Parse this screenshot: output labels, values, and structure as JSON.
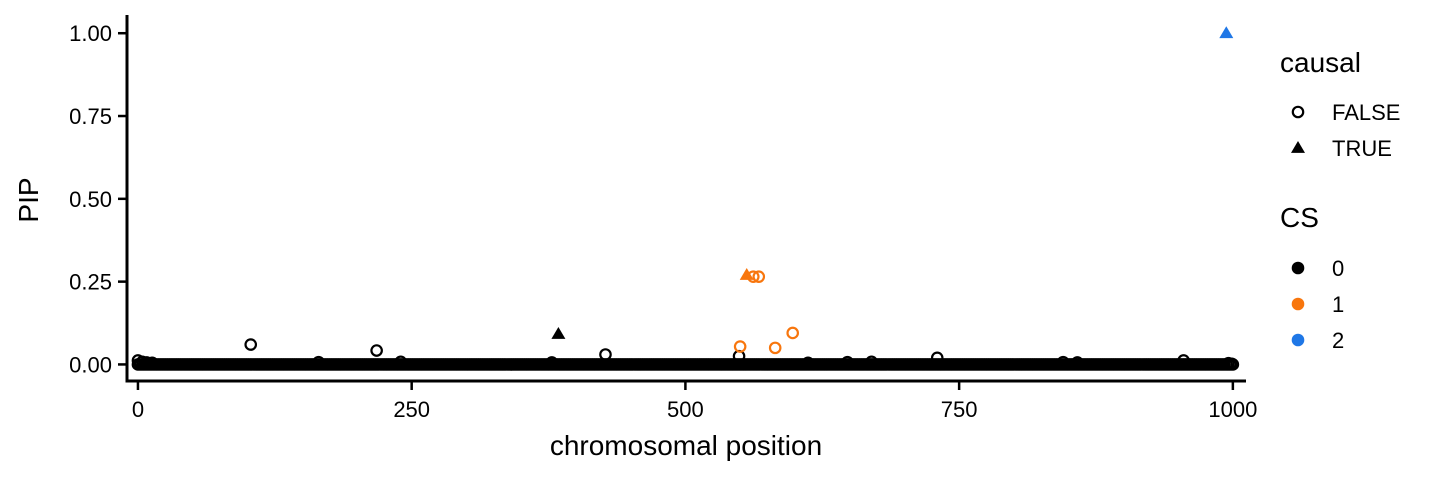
{
  "chart_data": {
    "type": "scatter",
    "xlabel": "chromosomal position",
    "ylabel": "PIP",
    "xlim": [
      -10,
      1012
    ],
    "ylim": [
      -0.05,
      1.055
    ],
    "x_ticks": [
      0,
      250,
      500,
      750,
      1000
    ],
    "x_tick_labels": [
      "0",
      "250",
      "500",
      "750",
      "1000"
    ],
    "y_ticks": [
      0,
      0.25,
      0.5,
      0.75,
      1
    ],
    "y_tick_labels": [
      "0.00",
      "0.25",
      "0.50",
      "0.75",
      "1.00"
    ],
    "grid": false,
    "legend_placement": "right",
    "shape_legend": {
      "title": "causal",
      "entries": [
        {
          "label": "FALSE",
          "shape": "open-circle"
        },
        {
          "label": "TRUE",
          "shape": "filled-triangle"
        }
      ]
    },
    "color_legend": {
      "title": "CS",
      "entries": [
        {
          "label": "0",
          "color": "#000000"
        },
        {
          "label": "1",
          "color": "#F8760D"
        },
        {
          "label": "2",
          "color": "#1F77E6"
        }
      ]
    },
    "baseline_band": {
      "x_range": [
        0,
        1000
      ],
      "pip": 0.0,
      "cs": "0",
      "causal": "FALSE"
    },
    "points": [
      {
        "x": 0,
        "y": 0.012,
        "cs": "0",
        "causal": "FALSE"
      },
      {
        "x": 4,
        "y": 0.008,
        "cs": "0",
        "causal": "FALSE"
      },
      {
        "x": 8,
        "y": 0.006,
        "cs": "0",
        "causal": "FALSE"
      },
      {
        "x": 13,
        "y": 0.005,
        "cs": "0",
        "causal": "FALSE"
      },
      {
        "x": 103,
        "y": 0.06,
        "cs": "0",
        "causal": "FALSE"
      },
      {
        "x": 165,
        "y": 0.007,
        "cs": "0",
        "causal": "FALSE"
      },
      {
        "x": 218,
        "y": 0.042,
        "cs": "0",
        "causal": "FALSE"
      },
      {
        "x": 240,
        "y": 0.008,
        "cs": "0",
        "causal": "FALSE"
      },
      {
        "x": 378,
        "y": 0.006,
        "cs": "0",
        "causal": "FALSE"
      },
      {
        "x": 384,
        "y": 0.092,
        "cs": "0",
        "causal": "TRUE"
      },
      {
        "x": 427,
        "y": 0.03,
        "cs": "0",
        "causal": "FALSE"
      },
      {
        "x": 549,
        "y": 0.025,
        "cs": "0",
        "causal": "FALSE"
      },
      {
        "x": 550,
        "y": 0.054,
        "cs": "1",
        "causal": "FALSE"
      },
      {
        "x": 556,
        "y": 0.27,
        "cs": "1",
        "causal": "TRUE"
      },
      {
        "x": 562,
        "y": 0.265,
        "cs": "1",
        "causal": "FALSE"
      },
      {
        "x": 567,
        "y": 0.265,
        "cs": "1",
        "causal": "FALSE"
      },
      {
        "x": 582,
        "y": 0.05,
        "cs": "1",
        "causal": "FALSE"
      },
      {
        "x": 598,
        "y": 0.095,
        "cs": "1",
        "causal": "FALSE"
      },
      {
        "x": 612,
        "y": 0.005,
        "cs": "0",
        "causal": "FALSE"
      },
      {
        "x": 648,
        "y": 0.007,
        "cs": "0",
        "causal": "FALSE"
      },
      {
        "x": 670,
        "y": 0.008,
        "cs": "0",
        "causal": "FALSE"
      },
      {
        "x": 730,
        "y": 0.02,
        "cs": "0",
        "causal": "FALSE"
      },
      {
        "x": 845,
        "y": 0.007,
        "cs": "0",
        "causal": "FALSE"
      },
      {
        "x": 858,
        "y": 0.006,
        "cs": "0",
        "causal": "FALSE"
      },
      {
        "x": 955,
        "y": 0.012,
        "cs": "0",
        "causal": "FALSE"
      },
      {
        "x": 994,
        "y": 1.0,
        "cs": "2",
        "causal": "TRUE"
      },
      {
        "x": 996,
        "y": 0.004,
        "cs": "0",
        "causal": "FALSE"
      },
      {
        "x": 999,
        "y": 0.002,
        "cs": "0",
        "causal": "FALSE"
      }
    ]
  }
}
